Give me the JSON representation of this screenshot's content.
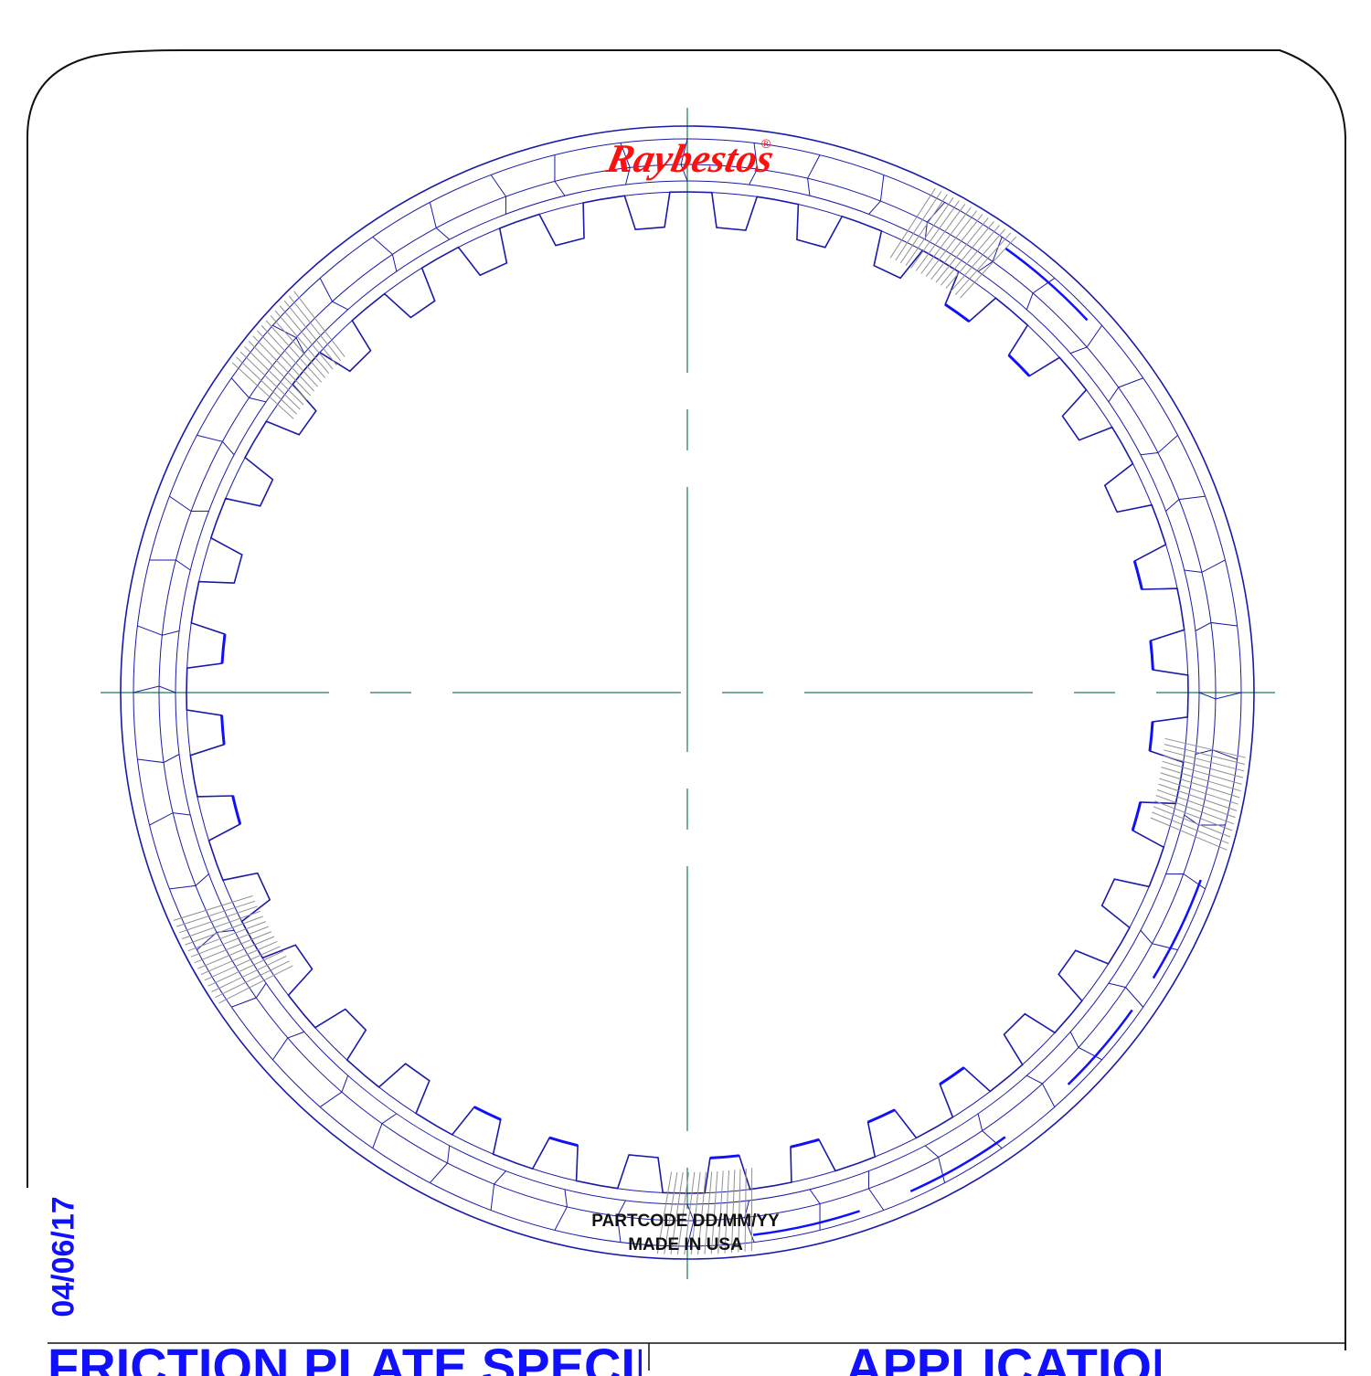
{
  "brand": {
    "logo_text": "Raybestos",
    "registered_mark": "®",
    "color": "#ff1010"
  },
  "plate": {
    "stamp_line_1": "PARTCODE DD/MM/YY",
    "stamp_line_2": "MADE IN USA",
    "inner_teeth": 36,
    "outline_color": "#1a1aa8",
    "accent_color": "#1010ff",
    "groove_color": "#909090",
    "centerline_color": "#1f7a4f"
  },
  "title_block": {
    "date": "04/06/17",
    "left_heading": "FRICTION PLATE SPECIFICS",
    "right_heading": "APPLICATION",
    "text_color": "#1010ff"
  }
}
